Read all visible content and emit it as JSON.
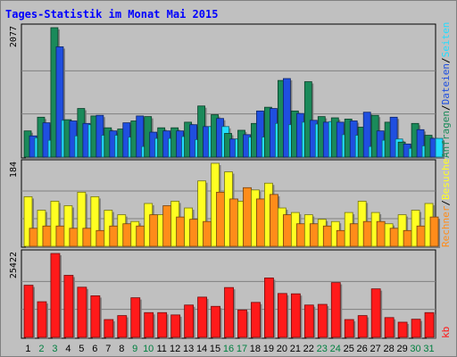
{
  "chart_data": {
    "type": "bar",
    "title": "Tages-Statistik im Monat Mai 2015",
    "categories": [
      "1",
      "2",
      "3",
      "4",
      "5",
      "6",
      "7",
      "8",
      "9",
      "10",
      "11",
      "12",
      "13",
      "14",
      "15",
      "16",
      "17",
      "18",
      "19",
      "20",
      "21",
      "22",
      "23",
      "24",
      "25",
      "26",
      "27",
      "28",
      "29",
      "30",
      "31"
    ],
    "weekend_categories": [
      "2",
      "3",
      "9",
      "10",
      "16",
      "17",
      "23",
      "24",
      "30",
      "31"
    ],
    "colors": {
      "frame_outer": "#c0c0c0",
      "panel_bg": "#c0c0c0",
      "title": "#0000ff",
      "weekday_tick": "#000000",
      "weekend_tick": "#008040",
      "anfragen": "#1a8a5a",
      "dateien": "#1f4fe0",
      "seiten": "#22ddff",
      "besuche": "#ffff22",
      "rechner": "#ff8c1a",
      "kb": "#ff1a1a",
      "grid": "#808080"
    },
    "panels": [
      {
        "name": "hits",
        "ymax_label": "2077",
        "ylim": [
          0,
          2077
        ],
        "series": [
          {
            "name": "Anfragen",
            "color_key": "anfragen",
            "values": [
              420,
              640,
              2077,
              600,
              780,
              660,
              470,
              450,
              580,
              650,
              470,
              470,
              560,
              820,
              680,
              380,
              430,
              540,
              800,
              1230,
              740,
              1210,
              650,
              630,
              610,
              480,
              670,
              560,
              240,
              540,
              350
            ]
          },
          {
            "name": "Dateien",
            "color_key": "dateien",
            "values": [
              340,
              550,
              1770,
              580,
              540,
              670,
              420,
              550,
              660,
              400,
              420,
              420,
              520,
              490,
              620,
              290,
              360,
              740,
              780,
              1260,
              700,
              590,
              560,
              560,
              580,
              720,
              420,
              640,
              210,
              440,
              300
            ]
          },
          {
            "name": "Seiten",
            "color_key": "seiten",
            "values": [
              310,
              270,
              590,
              340,
              520,
              350,
              350,
              320,
              170,
              300,
              300,
              330,
              280,
              490,
              490,
              290,
              320,
              320,
              540,
              520,
              560,
              530,
              570,
              360,
              350,
              170,
              270,
              290,
              140,
              180,
              300
            ]
          }
        ],
        "legend": [
          {
            "name": "Anfragen",
            "color_key": "anfragen"
          },
          {
            "name": "Dateien",
            "color_key": "dateien"
          },
          {
            "name": "Seiten",
            "color_key": "seiten"
          }
        ]
      },
      {
        "name": "visits",
        "ymax_label": "184",
        "ylim": [
          0,
          184
        ],
        "series": [
          {
            "name": "Besuche",
            "color_key": "besuche",
            "values": [
              110,
              80,
              100,
              90,
              120,
              110,
              80,
              70,
              55,
              95,
              70,
              100,
              85,
              145,
              184,
              165,
              100,
              125,
              140,
              85,
              75,
              70,
              60,
              55,
              75,
              100,
              75,
              50,
              70,
              80,
              95
            ]
          },
          {
            "name": "Rechner",
            "color_key": "rechner",
            "values": [
              40,
              45,
              45,
              40,
              40,
              35,
              45,
              50,
              45,
              70,
              90,
              65,
              60,
              55,
              120,
              105,
              130,
              105,
              115,
              70,
              50,
              50,
              45,
              35,
              50,
              55,
              55,
              40,
              35,
              45,
              65
            ]
          }
        ],
        "legend": [
          {
            "name": "Rechner",
            "color_key": "rechner"
          },
          {
            "name": "Besuche",
            "color_key": "besuche"
          }
        ]
      },
      {
        "name": "volume",
        "ymax_label": "25422",
        "ylim": [
          0,
          25422
        ],
        "series": [
          {
            "name": "kb",
            "color_key": "kb",
            "values": [
              15800,
              10800,
              25422,
              18800,
              15200,
              12600,
              5400,
              6600,
              12000,
              7500,
              7500,
              6800,
              9800,
              12200,
              9400,
              15100,
              8300,
              10600,
              18000,
              13300,
              13200,
              9800,
              10000,
              16600,
              5400,
              6600,
              14700,
              6000,
              4600,
              5500,
              7500
            ]
          }
        ],
        "legend": [
          {
            "name": "kb",
            "color_key": "kb"
          }
        ]
      }
    ]
  }
}
